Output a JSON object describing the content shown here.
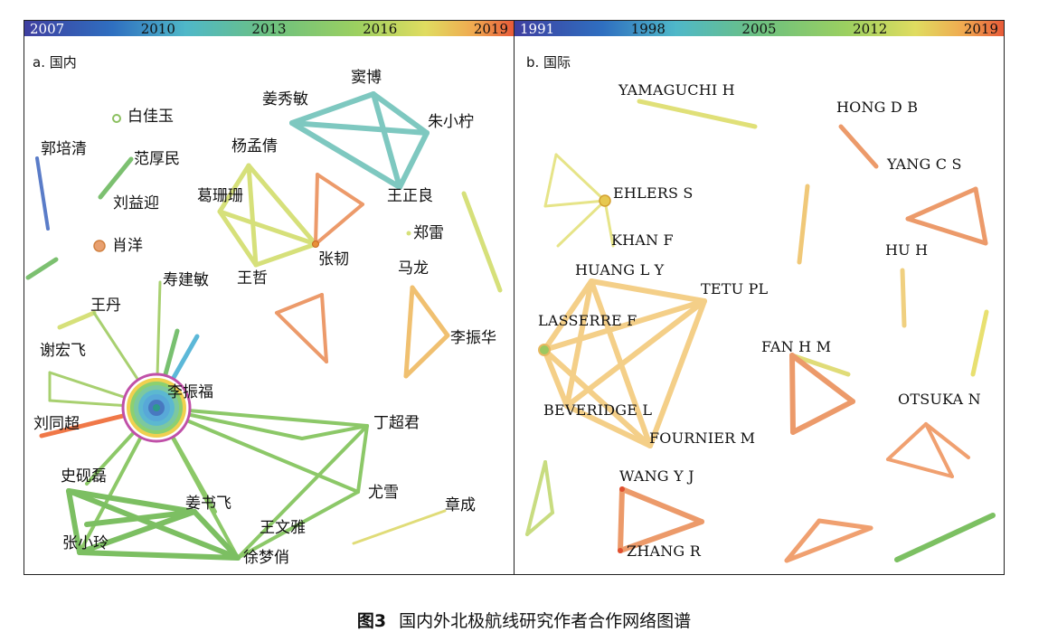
{
  "figure": {
    "caption_num": "图3",
    "caption_text": "国内外北极航线研究作者合作网络图谱"
  },
  "palette": [
    "#3f3fa0",
    "#2f5fb8",
    "#3b8fd0",
    "#4fb8c8",
    "#5cc0a0",
    "#7cc070",
    "#a8d060",
    "#dcdc60",
    "#f0b050",
    "#e87040"
  ],
  "panel_a": {
    "title": "a. 国内",
    "timebar_ticks": [
      "2007",
      "2010",
      "2013",
      "2016",
      "2019"
    ],
    "nodes": [
      {
        "id": "a1",
        "label": "窦博"
      },
      {
        "id": "a2",
        "label": "姜秀敏"
      },
      {
        "id": "a3",
        "label": "朱小柠"
      },
      {
        "id": "a4",
        "label": "白佳玉"
      },
      {
        "id": "a5",
        "label": "郭培清"
      },
      {
        "id": "a6",
        "label": "范厚民"
      },
      {
        "id": "a7",
        "label": "杨孟倩"
      },
      {
        "id": "a8",
        "label": "刘益迎"
      },
      {
        "id": "a9",
        "label": "葛珊珊"
      },
      {
        "id": "a10",
        "label": "王正良"
      },
      {
        "id": "a11",
        "label": "郑雷"
      },
      {
        "id": "a12",
        "label": "肖洋"
      },
      {
        "id": "a13",
        "label": "张韧"
      },
      {
        "id": "a14",
        "label": "王哲"
      },
      {
        "id": "a15",
        "label": "马龙"
      },
      {
        "id": "a16",
        "label": "寿建敏"
      },
      {
        "id": "a17",
        "label": "王丹"
      },
      {
        "id": "a18",
        "label": "李振华"
      },
      {
        "id": "a19",
        "label": "谢宏飞"
      },
      {
        "id": "a20",
        "label": "李振福"
      },
      {
        "id": "a21",
        "label": "刘同超"
      },
      {
        "id": "a22",
        "label": "丁超君"
      },
      {
        "id": "a23",
        "label": "史砚磊"
      },
      {
        "id": "a24",
        "label": "尤雪"
      },
      {
        "id": "a25",
        "label": "姜书飞"
      },
      {
        "id": "a26",
        "label": "章成"
      },
      {
        "id": "a27",
        "label": "王文雅"
      },
      {
        "id": "a28",
        "label": "张小玲"
      },
      {
        "id": "a29",
        "label": "徐梦俏"
      }
    ]
  },
  "panel_b": {
    "title": "b. 国际",
    "timebar_ticks": [
      "1991",
      "1998",
      "2005",
      "2012",
      "2019"
    ],
    "nodes": [
      {
        "id": "b1",
        "label": "YAMAGUCHI H"
      },
      {
        "id": "b2",
        "label": "HONG D B"
      },
      {
        "id": "b3",
        "label": "YANG C S"
      },
      {
        "id": "b4",
        "label": "EHLERS S"
      },
      {
        "id": "b5",
        "label": "KHAN F"
      },
      {
        "id": "b6",
        "label": "HU H"
      },
      {
        "id": "b7",
        "label": "HUANG L Y"
      },
      {
        "id": "b8",
        "label": "TETU PL"
      },
      {
        "id": "b9",
        "label": "LASSERRE F"
      },
      {
        "id": "b10",
        "label": "FAN H M"
      },
      {
        "id": "b11",
        "label": "OTSUKA N"
      },
      {
        "id": "b12",
        "label": "BEVERIDGE L"
      },
      {
        "id": "b13",
        "label": "FOURNIER M"
      },
      {
        "id": "b14",
        "label": "WANG Y J"
      },
      {
        "id": "b15",
        "label": "ZHANG R"
      }
    ]
  }
}
